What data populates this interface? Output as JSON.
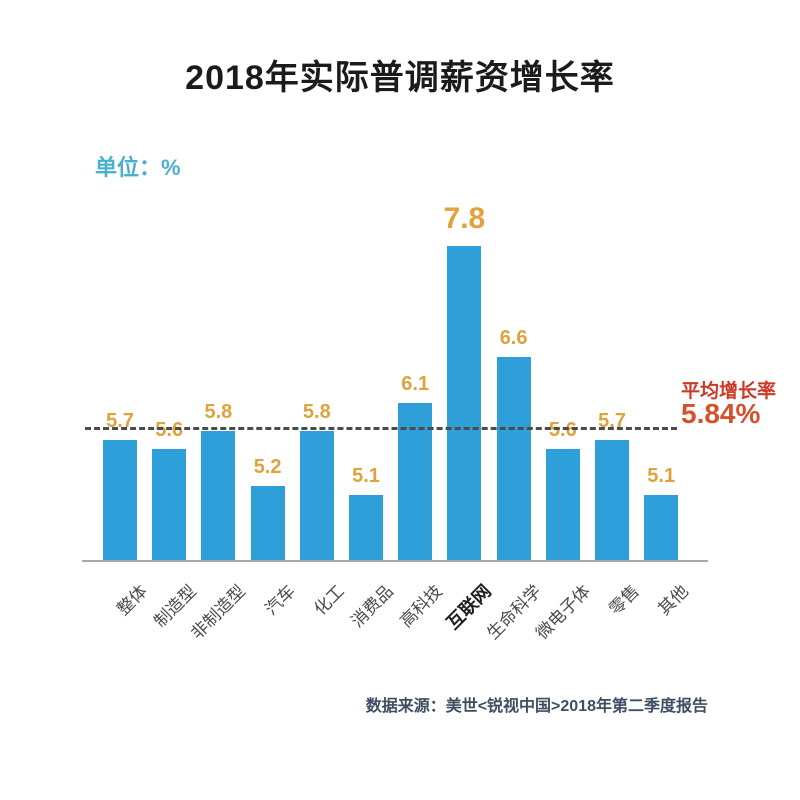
{
  "chart_data": {
    "type": "bar",
    "title": "2018年实际普调薪资增长率",
    "unit_label": "单位：%",
    "categories": [
      "整体",
      "制造型",
      "非制造型",
      "汽车",
      "化工",
      "消费品",
      "高科技",
      "互联网",
      "生命科学",
      "微电子体",
      "零售",
      "其他"
    ],
    "values": [
      5.7,
      5.6,
      5.8,
      5.2,
      5.8,
      5.1,
      6.1,
      7.8,
      6.6,
      5.6,
      5.7,
      5.1
    ],
    "highlighted_category": "互联网",
    "highlighted_value": 7.8,
    "average_line": {
      "label": "平均增长率",
      "value_label": "5.84%",
      "value": 5.84,
      "style": "dashed"
    },
    "ylim": [
      4.4,
      8.3
    ],
    "grid": false,
    "legend": "none",
    "colors": {
      "bar": "#2e9fd8",
      "value_label": "#dfa23c",
      "average_label": "#cb3927",
      "average_value": "#d4512c",
      "unit_label": "#49b0cd",
      "title": "#1b1b1b",
      "category_label": "#4a4a4a",
      "source": "#3d4f63",
      "dash_line": "#4b4b4b",
      "axis_line": "#a8a8a8"
    }
  },
  "source_note": "数据来源：美世<锐视中国>2018年第二季度报告"
}
